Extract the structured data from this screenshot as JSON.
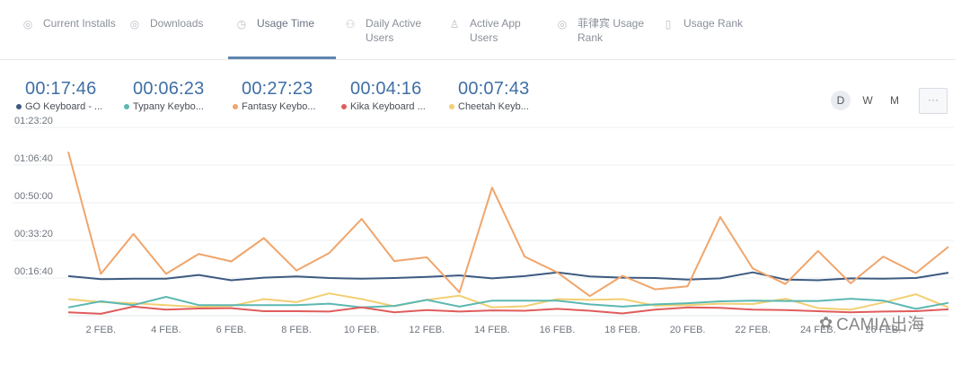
{
  "tabs": [
    {
      "label": "Current Installs",
      "icon": "circle-dot-icon"
    },
    {
      "label": "Downloads",
      "icon": "circle-dot-icon"
    },
    {
      "label": "Usage Time",
      "icon": "clock-icon"
    },
    {
      "label": "Daily Active Users",
      "icon": "users-icon"
    },
    {
      "label": "Active App Users",
      "icon": "user-icon"
    },
    {
      "label": "菲律宾 Usage Rank",
      "icon": "circle-dot-icon"
    },
    {
      "label": "Usage Rank",
      "icon": "phone-icon"
    }
  ],
  "summary": [
    {
      "value": "00:17:46",
      "name": "GO Keyboard - ...",
      "color": "#3d5a80"
    },
    {
      "value": "00:06:23",
      "name": "Typany Keybo...",
      "color": "#5cb8b2"
    },
    {
      "value": "00:27:23",
      "name": "Fantasy Keybo...",
      "color": "#f0a56b"
    },
    {
      "value": "00:04:16",
      "name": "Kika Keyboard ...",
      "color": "#e05c5c"
    },
    {
      "value": "00:07:43",
      "name": "Cheetah Keyb...",
      "color": "#f2cf72"
    }
  ],
  "periods": [
    "D",
    "W",
    "M"
  ],
  "selected_period": "D",
  "more_label": "···",
  "watermark": "CAMIA出海",
  "chart_data": {
    "type": "line",
    "x": [
      1,
      2,
      3,
      4,
      5,
      6,
      7,
      8,
      9,
      10,
      11,
      12,
      13,
      14,
      15,
      16,
      17,
      18,
      19,
      20,
      21,
      22,
      23,
      24,
      25,
      26,
      27,
      28
    ],
    "x_tick_labels": [
      "2 FEB.",
      "4 FEB.",
      "6 FEB.",
      "8 FEB.",
      "10 FEB.",
      "12 FEB.",
      "14 FEB.",
      "16 FEB.",
      "18 FEB.",
      "20 FEB.",
      "22 FEB.",
      "24 FEB.",
      "26 FEB."
    ],
    "x_tick_positions": [
      2,
      4,
      6,
      8,
      10,
      12,
      14,
      16,
      18,
      20,
      22,
      24,
      26
    ],
    "y_ticks": [
      "01:23:20",
      "01:06:40",
      "00:50:00",
      "00:33:20",
      "00:16:40"
    ],
    "y_tick_seconds": [
      5000,
      4000,
      3000,
      2000,
      1000
    ],
    "ylim": [
      0,
      5000
    ],
    "grid": true,
    "series": [
      {
        "name": "GO Keyboard - ...",
        "color": "#3d5a80",
        "values": [
          1050,
          970,
          980,
          980,
          1080,
          940,
          1010,
          1040,
          1000,
          980,
          1000,
          1030,
          1070,
          990,
          1050,
          1150,
          1040,
          1010,
          1000,
          960,
          990,
          1150,
          960,
          940,
          990,
          980,
          1000,
          1140
        ]
      },
      {
        "name": "Typany Keybo...",
        "color": "#5cb8b2",
        "values": [
          220,
          380,
          280,
          500,
          280,
          280,
          280,
          280,
          320,
          220,
          260,
          420,
          240,
          400,
          400,
          400,
          300,
          240,
          300,
          330,
          380,
          400,
          390,
          390,
          450,
          400,
          180,
          340
        ]
      },
      {
        "name": "Fantasy Keybo...",
        "color": "#f0a56b",
        "values": [
          4350,
          1110,
          2170,
          1110,
          1640,
          1440,
          2060,
          1200,
          1660,
          2570,
          1450,
          1550,
          620,
          3400,
          1570,
          1150,
          520,
          1060,
          700,
          780,
          2620,
          1250,
          840,
          1720,
          860,
          1570,
          1130,
          1830
        ]
      },
      {
        "name": "Kika Keyboard ...",
        "color": "#e05c5c",
        "values": [
          90,
          50,
          240,
          160,
          190,
          200,
          120,
          120,
          110,
          220,
          90,
          150,
          110,
          140,
          130,
          180,
          130,
          60,
          160,
          220,
          210,
          160,
          150,
          120,
          90,
          110,
          120,
          170
        ]
      },
      {
        "name": "Cheetah Keyb...",
        "color": "#f2cf72",
        "values": [
          440,
          360,
          330,
          280,
          230,
          260,
          440,
          360,
          590,
          440,
          250,
          420,
          530,
          220,
          250,
          440,
          420,
          440,
          270,
          280,
          320,
          310,
          450,
          200,
          160,
          350,
          570,
          220
        ]
      }
    ]
  }
}
